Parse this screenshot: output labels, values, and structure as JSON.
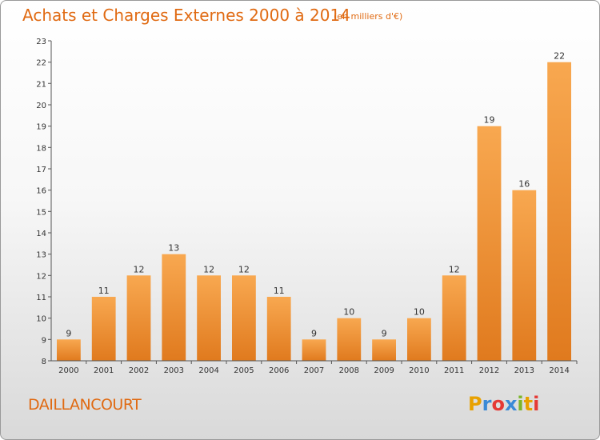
{
  "header": {
    "title": "Achats et Charges Externes 2000 à 2014",
    "subtitle": "(en milliers d'€)"
  },
  "footer": {
    "location": "DAILLANCOURT",
    "logo_text": "Proxiti",
    "logo_colors": [
      "#e8a100",
      "#3a8ad6",
      "#e53935",
      "#3a8ad6",
      "#7bb62a",
      "#e8a100",
      "#e53935"
    ]
  },
  "colors": {
    "title": "#e06a12",
    "bar_light": "#f8a850",
    "bar_dark": "#e07a1e",
    "axis": "#555555"
  },
  "chart_data": {
    "type": "bar",
    "title": "Achats et Charges Externes 2000 à 2014",
    "subtitle": "(en milliers d'€)",
    "xlabel": "",
    "ylabel": "",
    "categories": [
      "2000",
      "2001",
      "2002",
      "2003",
      "2004",
      "2005",
      "2006",
      "2007",
      "2008",
      "2009",
      "2010",
      "2011",
      "2012",
      "2013",
      "2014"
    ],
    "values": [
      9,
      11,
      12,
      13,
      12,
      12,
      11,
      9,
      10,
      9,
      10,
      12,
      19,
      16,
      22
    ],
    "ylim": [
      8,
      23
    ],
    "yticks": [
      8,
      9,
      10,
      11,
      12,
      13,
      14,
      15,
      16,
      17,
      18,
      19,
      20,
      21,
      22,
      23
    ],
    "grid": false,
    "legend": "none"
  }
}
